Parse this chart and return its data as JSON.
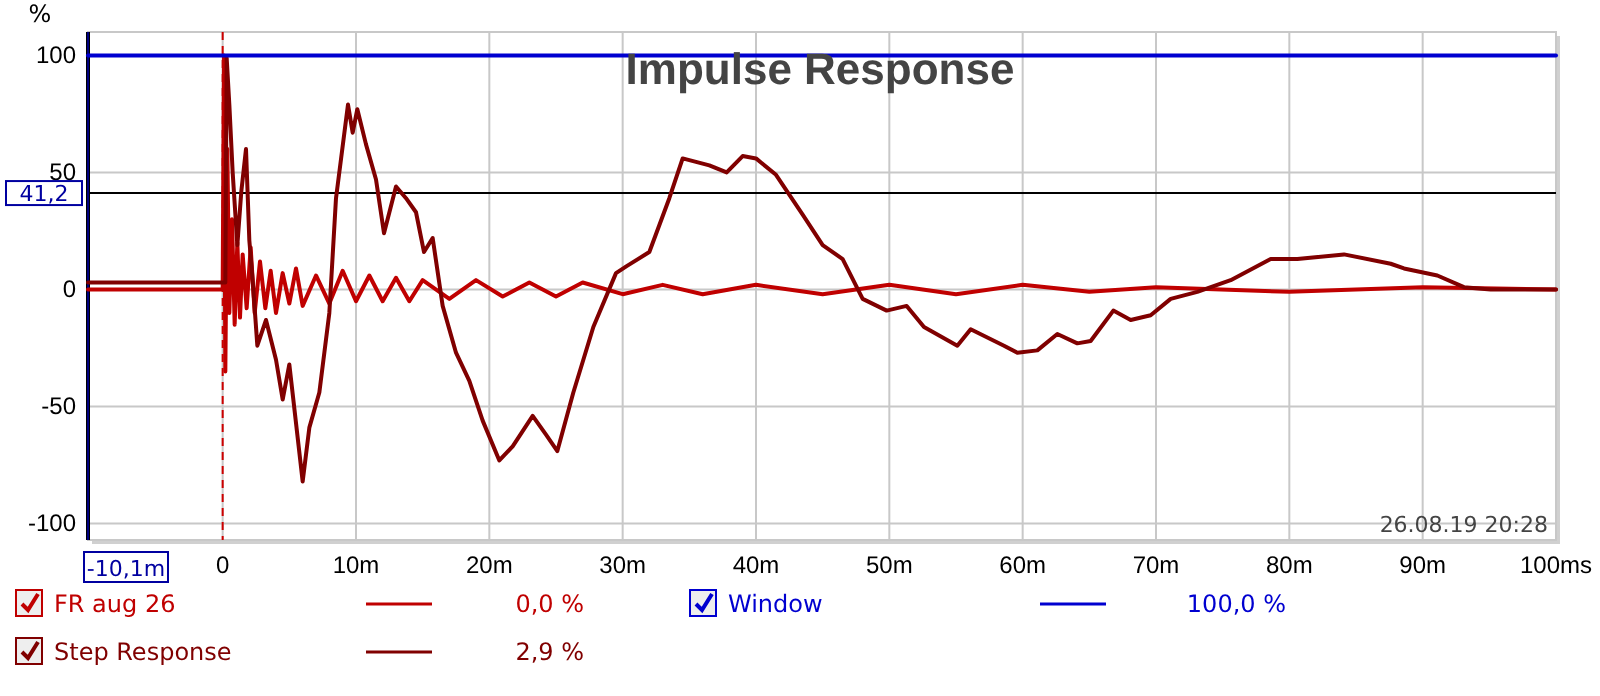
{
  "chart_data": {
    "type": "line",
    "title": "Impulse Response",
    "ylabel": "%",
    "xlim": [
      -10.1,
      100
    ],
    "ylim": [
      -107,
      110
    ],
    "xticks": [
      0,
      {
        "value": 10,
        "label": "10m"
      },
      {
        "value": 20,
        "label": "20m"
      },
      {
        "value": 30,
        "label": "30m"
      },
      {
        "value": 40,
        "label": "40m"
      },
      {
        "value": 50,
        "label": "50m"
      },
      {
        "value": 60,
        "label": "60m"
      },
      {
        "value": 70,
        "label": "70m"
      },
      {
        "value": 80,
        "label": "80m"
      },
      {
        "value": 90,
        "label": "90m"
      },
      {
        "value": 100,
        "label": "100ms"
      }
    ],
    "yticks": [
      -100,
      -50,
      0,
      50,
      100
    ],
    "grid": true,
    "legend": "bottom",
    "marker": "none",
    "line_style": "solid",
    "ref_lines": [
      {
        "axis": "y",
        "value": 41.2,
        "label": "41,2",
        "color": "#000000",
        "line_style": "solid"
      },
      {
        "axis": "x",
        "value": 0,
        "color": "#cc0000",
        "line_style": "dashed"
      },
      {
        "axis": "x",
        "value": -10.1,
        "label": "-10,1m",
        "color": "#000080",
        "line_style": "solid"
      }
    ],
    "annotations": [
      "26.08.19 20:28",
      "0,0 %",
      "2,9 %",
      "100,0 %"
    ],
    "series": [
      {
        "name": "FR aug 26",
        "color": "#c00000",
        "x": [
          -10.1,
          0,
          0.1,
          0.2,
          0.35,
          0.5,
          0.7,
          0.9,
          1.1,
          1.3,
          1.5,
          1.8,
          2.1,
          2.4,
          2.8,
          3.2,
          3.6,
          4.0,
          4.5,
          5.0,
          5.5,
          6,
          7,
          8,
          9,
          10,
          11,
          12,
          13,
          14,
          15,
          17,
          19,
          21,
          23,
          25,
          27,
          30,
          33,
          36,
          40,
          45,
          50,
          55,
          60,
          65,
          70,
          80,
          90,
          100
        ],
        "values": [
          0,
          0,
          100,
          -35,
          60,
          -10,
          30,
          -15,
          20,
          -12,
          15,
          -8,
          18,
          -10,
          12,
          -8,
          8,
          -10,
          7,
          -6,
          9,
          -7,
          6,
          -6,
          8,
          -5,
          6,
          -5,
          5,
          -5,
          4,
          -4,
          4,
          -3,
          3,
          -3,
          3,
          -2,
          2,
          -2,
          2,
          -2,
          2,
          -2,
          2,
          -1,
          1,
          -1,
          1,
          0
        ]
      },
      {
        "name": "Step Response",
        "color": "#800000",
        "x": [
          -10.1,
          0,
          0.2,
          0.3,
          0.5,
          0.75,
          1.1,
          1.4,
          1.75,
          2.0,
          2.25,
          2.6,
          3.25,
          4.0,
          4.5,
          5.0,
          6.0,
          6.5,
          7.25,
          8.0,
          8.5,
          9.4,
          9.75,
          10.1,
          10.75,
          11.5,
          12.1,
          13.0,
          13.75,
          14.5,
          15.1,
          15.75,
          16.5,
          17.5,
          18.5,
          19.5,
          20.75,
          21.75,
          23.25,
          24.25,
          25.1,
          26.3,
          27.8,
          29.5,
          30.3,
          32.0,
          33.5,
          34.5,
          36.5,
          37.8,
          39.0,
          40.0,
          41.5,
          43.5,
          45.0,
          46.5,
          48.0,
          49.8,
          51.3,
          52.6,
          55.1,
          56.1,
          58.6,
          59.6,
          61.1,
          62.6,
          64.1,
          65.1,
          66.8,
          68.1,
          69.6,
          71.1,
          73.1,
          75.6,
          78.6,
          80.6,
          84.1,
          87.6,
          88.6,
          91.1,
          93.1,
          95.1,
          100
        ],
        "values": [
          3,
          3,
          3,
          99,
          79,
          50,
          19,
          42,
          60,
          21,
          4,
          -24,
          -13,
          -30,
          -47,
          -32,
          -82,
          -59,
          -44,
          -10,
          39,
          79,
          67,
          77,
          62,
          47,
          24,
          44,
          39,
          33,
          16,
          22,
          -7,
          -27,
          -39,
          -56,
          -73,
          -67,
          -54,
          -62,
          -69,
          -44,
          -16,
          7,
          10,
          16,
          39,
          56,
          53,
          50,
          57,
          56,
          49,
          32,
          19,
          13,
          -4,
          -9,
          -7,
          -16,
          -24,
          -17,
          -24,
          -27,
          -26,
          -19,
          -23,
          -22,
          -9,
          -13,
          -11,
          -4,
          -1,
          4,
          13,
          13,
          15,
          11,
          9,
          6,
          1,
          0,
          0
        ]
      },
      {
        "name": "Window",
        "color": "#0000d0",
        "x": [
          -10.1,
          100
        ],
        "values": [
          100,
          100
        ]
      }
    ]
  }
}
